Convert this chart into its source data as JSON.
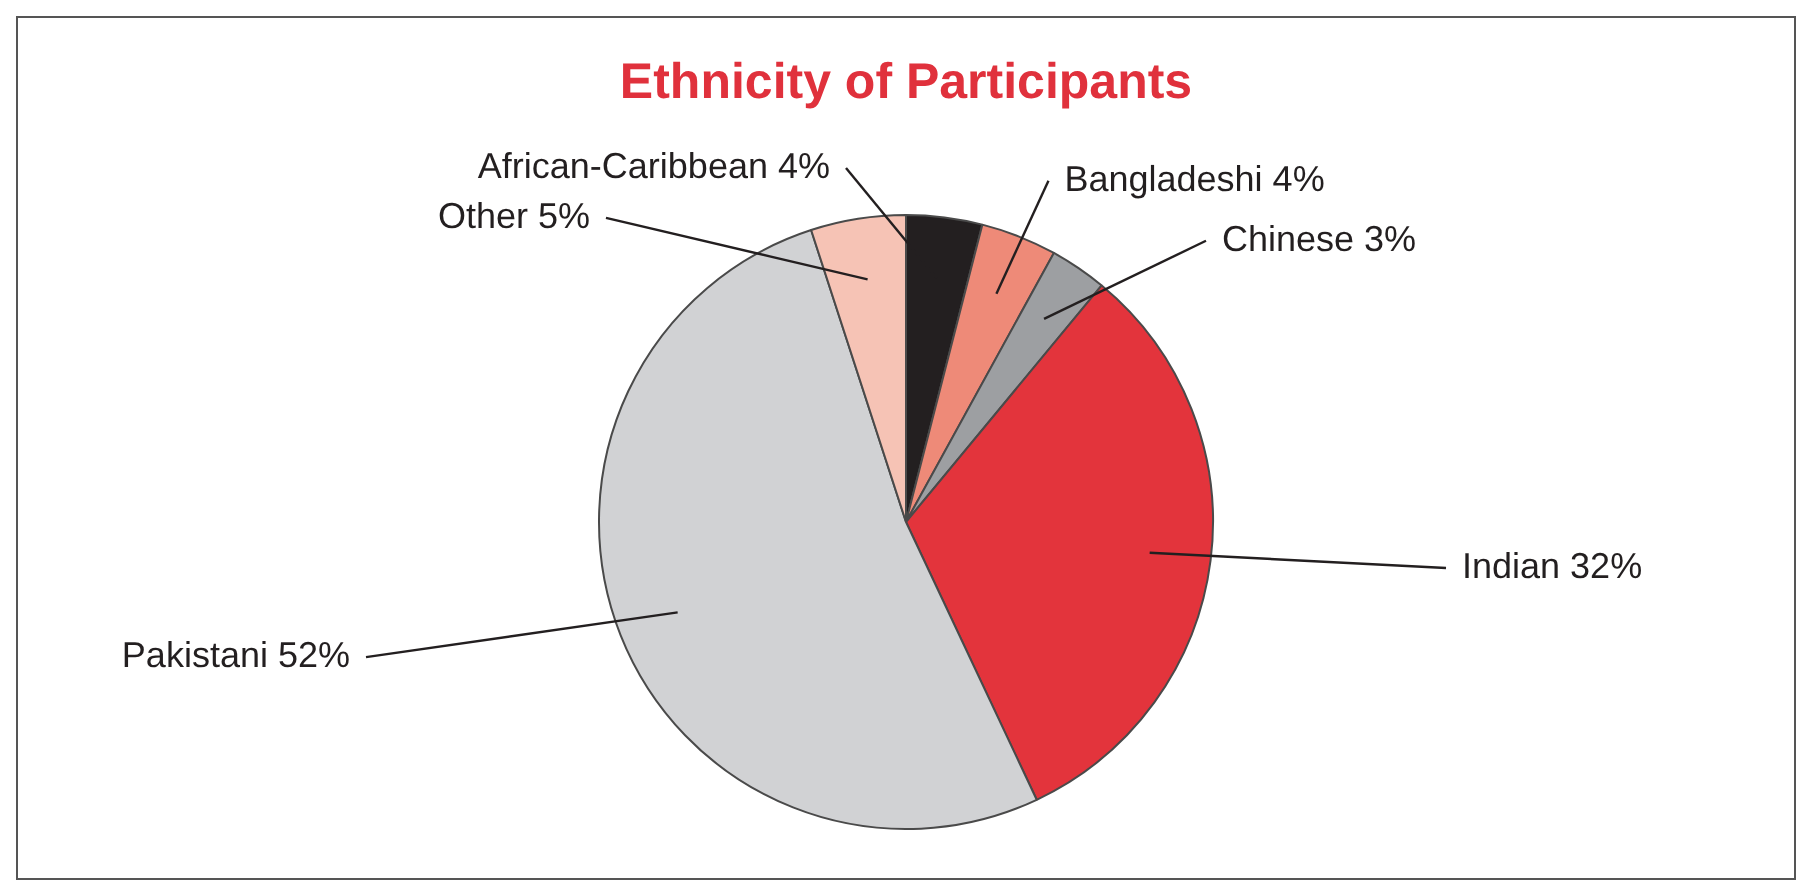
{
  "chart_data": {
    "type": "pie",
    "title": "Ethnicity of Participants",
    "categories": [
      "African-Caribbean",
      "Bangladeshi",
      "Chinese",
      "Indian",
      "Pakistani",
      "Other"
    ],
    "values": [
      4,
      4,
      3,
      32,
      52,
      5
    ],
    "value_labels": [
      "4%",
      "4%",
      "3%",
      "32%",
      "52%",
      "5%"
    ],
    "colors": [
      "#231f20",
      "#ee8a78",
      "#9d9fa2",
      "#e3343c",
      "#d1d2d4",
      "#f6c3b5"
    ],
    "legend": false
  }
}
